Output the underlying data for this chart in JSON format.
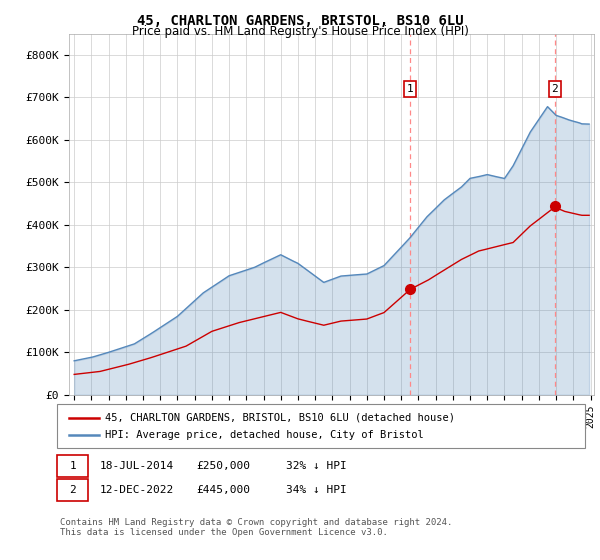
{
  "title": "45, CHARLTON GARDENS, BRISTOL, BS10 6LU",
  "subtitle": "Price paid vs. HM Land Registry's House Price Index (HPI)",
  "ylim": [
    0,
    850000
  ],
  "yticks": [
    0,
    100000,
    200000,
    300000,
    400000,
    500000,
    600000,
    700000,
    800000
  ],
  "ytick_labels": [
    "£0",
    "£100K",
    "£200K",
    "£300K",
    "£400K",
    "£500K",
    "£600K",
    "£700K",
    "£800K"
  ],
  "hpi_color": "#5588bb",
  "hpi_fill_color": "#cce0f0",
  "price_color": "#cc0000",
  "marker1_year": 2014.54,
  "marker2_year": 2022.92,
  "marker1_price": 250000,
  "marker2_price": 445000,
  "marker1_label": "1",
  "marker2_label": "2",
  "marker1_date_text": "18-JUL-2014",
  "marker1_price_text": "£250,000",
  "marker1_hpi_text": "32% ↓ HPI",
  "marker2_date_text": "12-DEC-2022",
  "marker2_price_text": "£445,000",
  "marker2_hpi_text": "34% ↓ HPI",
  "legend_line1": "45, CHARLTON GARDENS, BRISTOL, BS10 6LU (detached house)",
  "legend_line2": "HPI: Average price, detached house, City of Bristol",
  "footnote": "Contains HM Land Registry data © Crown copyright and database right 2024.\nThis data is licensed under the Open Government Licence v3.0.",
  "background_color": "#ffffff",
  "grid_color": "#cccccc"
}
